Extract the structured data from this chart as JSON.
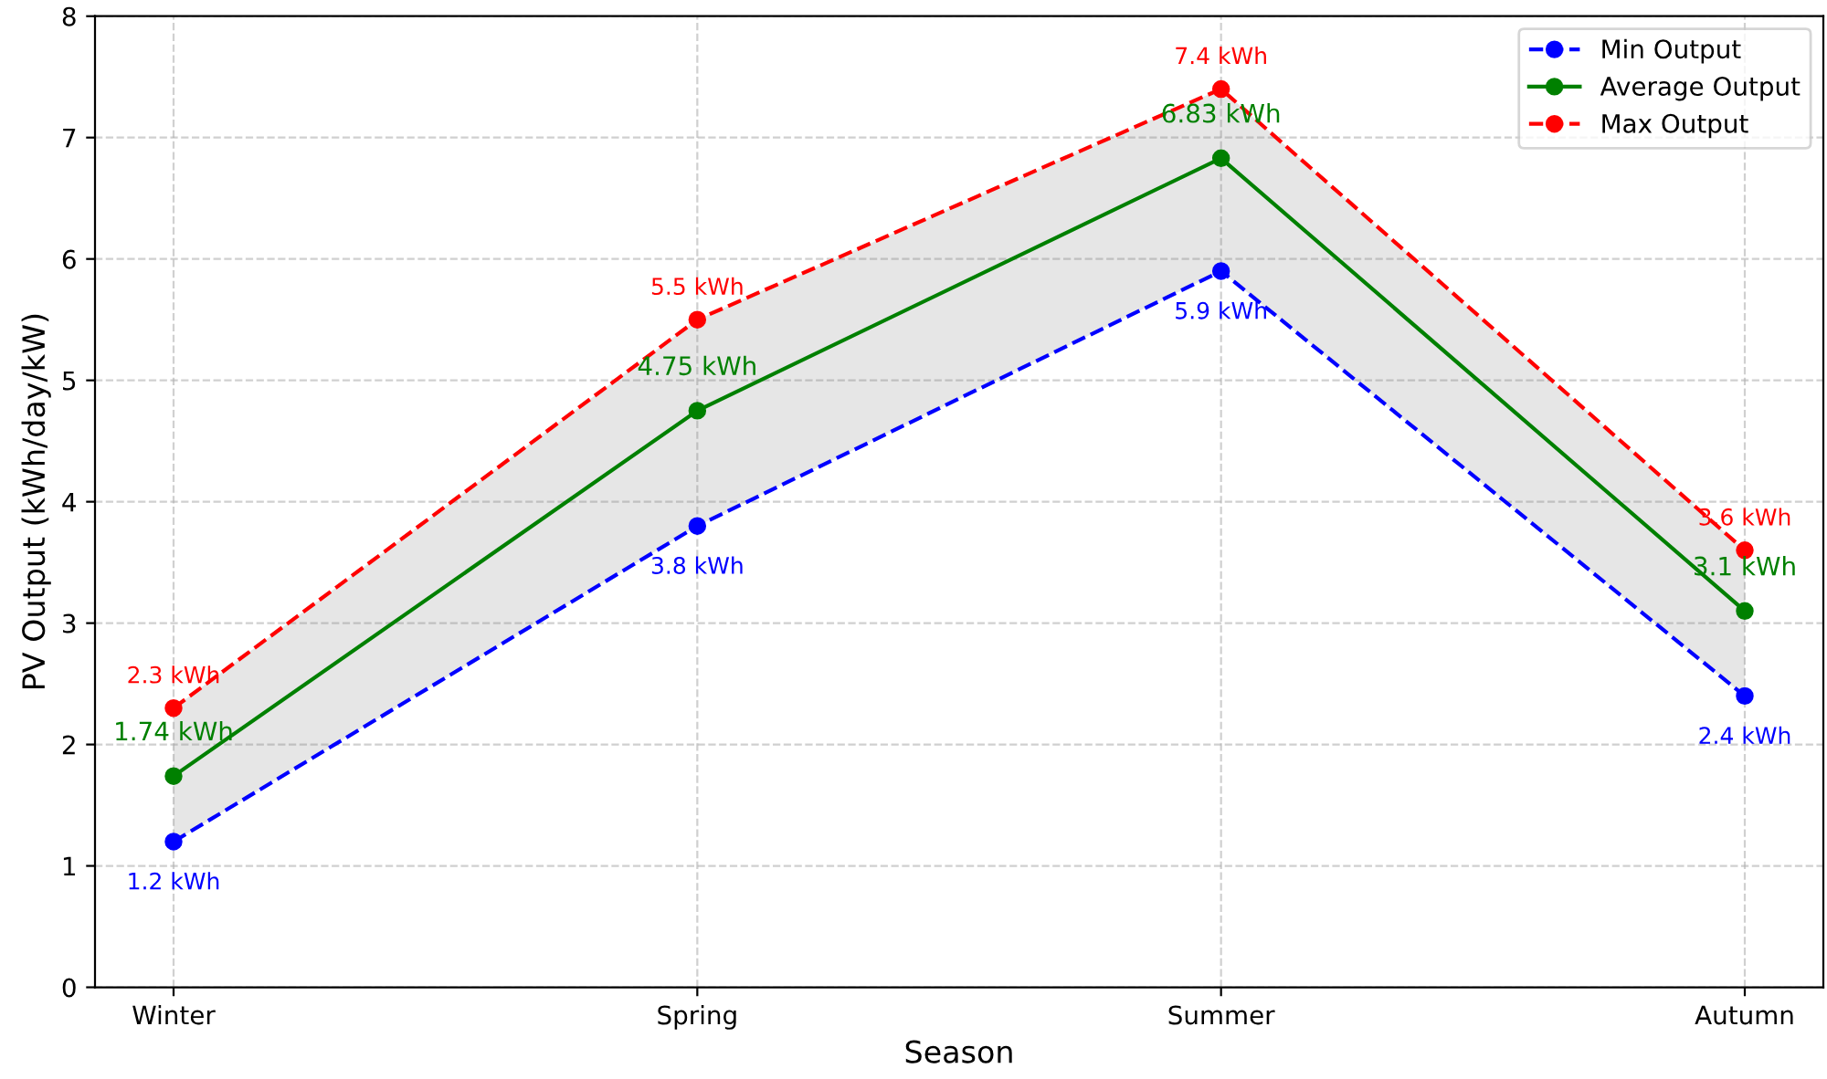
{
  "chart_data": {
    "type": "line",
    "xlabel": "Season",
    "ylabel": "PV Output (kWh/day/kW)",
    "categories": [
      "Winter",
      "Spring",
      "Summer",
      "Autumn"
    ],
    "series": [
      {
        "name": "Min Output",
        "color": "#0000ff",
        "line_style": "dashed",
        "values": [
          1.2,
          3.8,
          5.9,
          2.4
        ],
        "value_labels": [
          "1.2 kWh",
          "3.8 kWh",
          "5.9 kWh",
          "2.4 kWh"
        ]
      },
      {
        "name": "Average Output",
        "color": "#008000",
        "line_style": "solid",
        "values": [
          1.74,
          4.75,
          6.83,
          3.1
        ],
        "value_labels": [
          "1.74 kWh",
          "4.75 kWh",
          "6.83 kWh",
          "3.1 kWh"
        ],
        "lower": [
          1.2,
          3.8,
          5.9,
          2.4
        ],
        "upper": [
          2.3,
          5.5,
          7.4,
          3.6
        ]
      },
      {
        "name": "Max Output",
        "color": "#ff0000",
        "line_style": "dashed",
        "values": [
          2.3,
          5.5,
          7.4,
          3.6
        ],
        "value_labels": [
          "2.3 kWh",
          "5.5 kWh",
          "7.4 kWh",
          "3.6 kWh"
        ]
      }
    ],
    "ylim": [
      0,
      8
    ],
    "yticks": [
      0,
      1,
      2,
      3,
      4,
      5,
      6,
      7,
      8
    ],
    "grid": true,
    "legend": "top right",
    "marker": "circle"
  }
}
